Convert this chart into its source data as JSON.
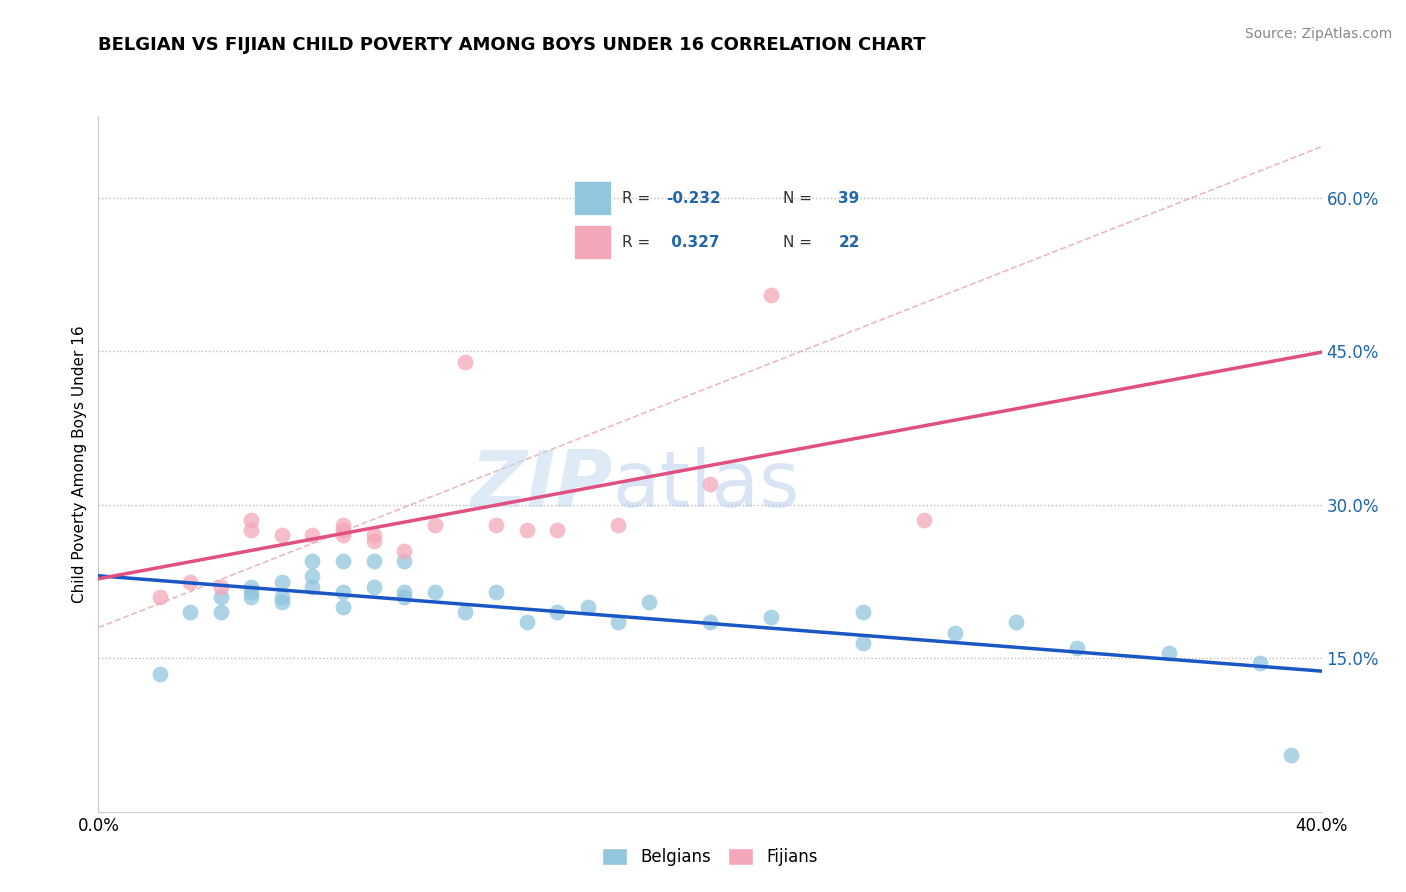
{
  "title": "BELGIAN VS FIJIAN CHILD POVERTY AMONG BOYS UNDER 16 CORRELATION CHART",
  "source": "Source: ZipAtlas.com",
  "ylabel": "Child Poverty Among Boys Under 16",
  "ytick_labels": [
    "15.0%",
    "30.0%",
    "45.0%",
    "60.0%"
  ],
  "ytick_values": [
    0.15,
    0.3,
    0.45,
    0.6
  ],
  "xlim": [
    0.0,
    0.4
  ],
  "ylim": [
    0.0,
    0.68
  ],
  "belgian_R": -0.232,
  "belgian_N": 39,
  "fijian_R": 0.327,
  "fijian_N": 22,
  "belgian_color": "#92c5de",
  "fijian_color": "#f4a7b9",
  "trend_blue": "#1a56c4",
  "trend_pink": "#e05080",
  "ref_line_color": "#d4a0a0",
  "belgian_scatter_x": [
    0.02,
    0.03,
    0.04,
    0.04,
    0.05,
    0.05,
    0.05,
    0.06,
    0.06,
    0.06,
    0.07,
    0.07,
    0.07,
    0.08,
    0.08,
    0.08,
    0.09,
    0.09,
    0.1,
    0.1,
    0.1,
    0.11,
    0.12,
    0.13,
    0.14,
    0.15,
    0.16,
    0.17,
    0.18,
    0.2,
    0.22,
    0.25,
    0.25,
    0.28,
    0.3,
    0.32,
    0.35,
    0.38,
    0.39
  ],
  "belgian_scatter_y": [
    0.135,
    0.195,
    0.21,
    0.195,
    0.21,
    0.215,
    0.22,
    0.205,
    0.21,
    0.225,
    0.22,
    0.23,
    0.245,
    0.245,
    0.2,
    0.215,
    0.22,
    0.245,
    0.21,
    0.215,
    0.245,
    0.215,
    0.195,
    0.215,
    0.185,
    0.195,
    0.2,
    0.185,
    0.205,
    0.185,
    0.19,
    0.165,
    0.195,
    0.175,
    0.185,
    0.16,
    0.155,
    0.145,
    0.055
  ],
  "fijian_scatter_x": [
    0.02,
    0.03,
    0.04,
    0.05,
    0.05,
    0.06,
    0.07,
    0.08,
    0.08,
    0.08,
    0.09,
    0.09,
    0.1,
    0.11,
    0.12,
    0.13,
    0.14,
    0.15,
    0.17,
    0.2,
    0.22,
    0.27
  ],
  "fijian_scatter_y": [
    0.21,
    0.225,
    0.22,
    0.285,
    0.275,
    0.27,
    0.27,
    0.28,
    0.27,
    0.275,
    0.27,
    0.265,
    0.255,
    0.28,
    0.44,
    0.28,
    0.275,
    0.275,
    0.28,
    0.32,
    0.505,
    0.285
  ],
  "watermark_zip": "ZIP",
  "watermark_atlas": "atlas"
}
